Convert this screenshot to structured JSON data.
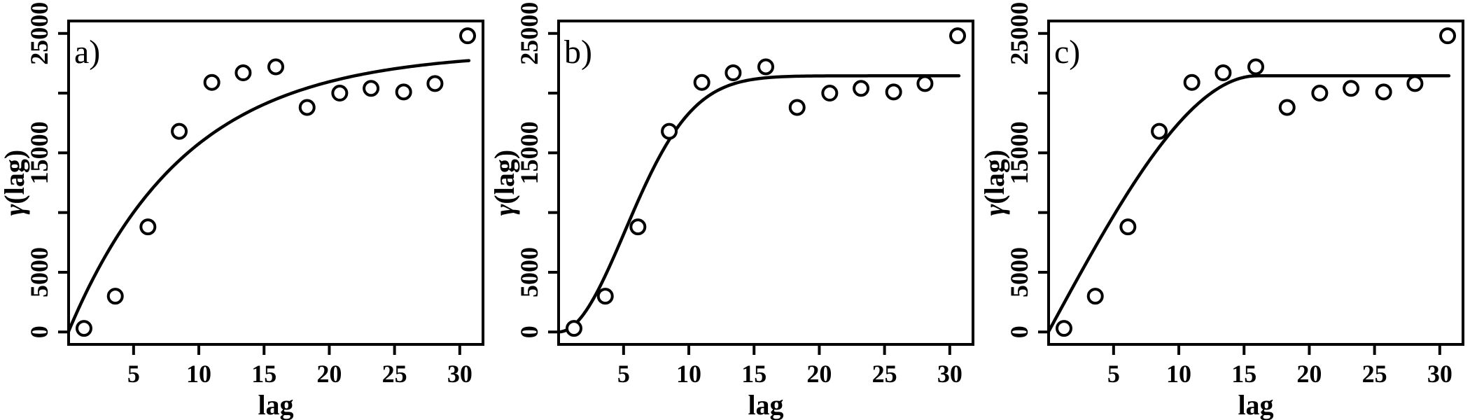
{
  "figure": {
    "background_color": "#ffffff",
    "stroke_color": "#000000",
    "description": "Empirical semivariogram points with three fitted variogram models"
  },
  "chart_data": [
    {
      "type": "scatter",
      "panel_label": "a)",
      "xlabel": "lag",
      "ylabel": "γ(lag)",
      "x": [
        1.2,
        3.6,
        6.1,
        8.5,
        11.0,
        13.4,
        15.9,
        18.3,
        20.8,
        23.2,
        25.7,
        28.1,
        30.6
      ],
      "y": [
        300,
        3000,
        8800,
        16800,
        20900,
        21700,
        22200,
        18800,
        20000,
        20400,
        20100,
        20800,
        24800
      ],
      "marker": "open-circle",
      "grid": false,
      "legend": null,
      "xlim": [
        0.02,
        31.78
      ],
      "ylim": [
        -1040,
        26040
      ],
      "xticks": [
        5,
        10,
        15,
        20,
        25,
        30
      ],
      "xtick_labels": [
        "5",
        "10",
        "15",
        "20",
        "25",
        "30"
      ],
      "yticks": [
        0,
        5000,
        10000,
        15000,
        20000,
        25000
      ],
      "ytick_labels": [
        "0",
        "5000",
        "",
        "15000",
        "",
        "25000"
      ],
      "model_curve": {
        "type": "exponential",
        "nugget": 0,
        "sill": 23500,
        "practical_range": 27,
        "x_start": 0.02,
        "x_end": 30.7
      }
    },
    {
      "type": "scatter",
      "panel_label": "b)",
      "xlabel": "lag",
      "ylabel": "γ(lag)",
      "x": [
        1.2,
        3.6,
        6.1,
        8.5,
        11.0,
        13.4,
        15.9,
        18.3,
        20.8,
        23.2,
        25.7,
        28.1,
        30.6
      ],
      "y": [
        300,
        3000,
        8800,
        16800,
        20900,
        21700,
        22200,
        18800,
        20000,
        20400,
        20100,
        20800,
        24800
      ],
      "marker": "open-circle",
      "grid": false,
      "legend": null,
      "xlim": [
        0.02,
        31.78
      ],
      "ylim": [
        -1040,
        26040
      ],
      "xticks": [
        5,
        10,
        15,
        20,
        25,
        30
      ],
      "xtick_labels": [
        "5",
        "10",
        "15",
        "20",
        "25",
        "30"
      ],
      "yticks": [
        0,
        5000,
        10000,
        15000,
        20000,
        25000
      ],
      "ytick_labels": [
        "0",
        "5000",
        "",
        "15000",
        "",
        "25000"
      ],
      "model_curve": {
        "type": "gaussian",
        "nugget": 0,
        "sill": 21450,
        "practical_range": 12.5,
        "x_start": 0.02,
        "x_end": 30.7
      }
    },
    {
      "type": "scatter",
      "panel_label": "c)",
      "xlabel": "lag",
      "ylabel": "γ(lag)",
      "x": [
        1.2,
        3.6,
        6.1,
        8.5,
        11.0,
        13.4,
        15.9,
        18.3,
        20.8,
        23.2,
        25.7,
        28.1,
        30.6
      ],
      "y": [
        300,
        3000,
        8800,
        16800,
        20900,
        21700,
        22200,
        18800,
        20000,
        20400,
        20100,
        20800,
        24800
      ],
      "marker": "open-circle",
      "grid": false,
      "legend": null,
      "xlim": [
        0.02,
        31.78
      ],
      "ylim": [
        -1040,
        26040
      ],
      "xticks": [
        5,
        10,
        15,
        20,
        25,
        30
      ],
      "xtick_labels": [
        "5",
        "10",
        "15",
        "20",
        "25",
        "30"
      ],
      "yticks": [
        0,
        5000,
        10000,
        15000,
        20000,
        25000
      ],
      "ytick_labels": [
        "0",
        "5000",
        "",
        "15000",
        "",
        "25000"
      ],
      "model_curve": {
        "type": "spherical",
        "nugget": 0,
        "sill": 21450,
        "range": 16,
        "x_start": 0.02,
        "x_end": 30.7
      }
    }
  ]
}
